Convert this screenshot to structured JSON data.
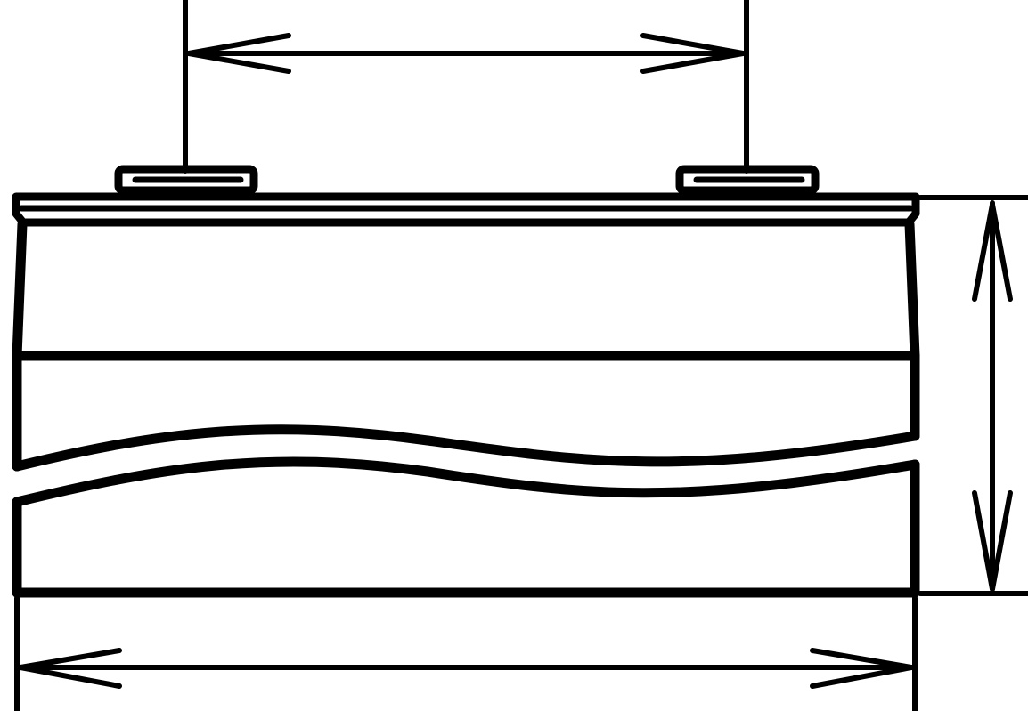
{
  "drawing": {
    "background_color": "#ffffff",
    "line_color": "#000000",
    "labels": {}
  }
}
